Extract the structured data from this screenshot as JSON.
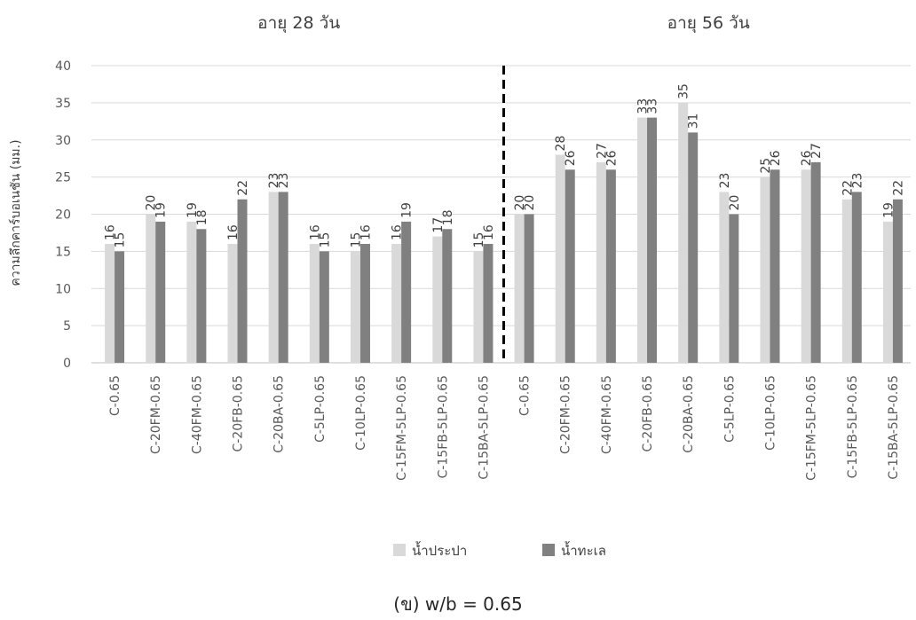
{
  "chart_data": {
    "type": "bar",
    "title": "",
    "caption": "(ข) w/b = 0.65",
    "ylabel": "ความลึกคาร์บอเนชัน (มม.)",
    "xlabel": "",
    "ylim": [
      0,
      40
    ],
    "yticks": [
      0,
      5,
      10,
      15,
      20,
      25,
      30,
      35,
      40
    ],
    "grid": true,
    "legend_position": "bottom",
    "groups": [
      {
        "label": "อายุ 28 วัน",
        "start": 0,
        "count": 10
      },
      {
        "label": "อายุ 56 วัน",
        "start": 10,
        "count": 10
      }
    ],
    "categories": [
      "C-0.65",
      "C-20FM-0.65",
      "C-40FM-0.65",
      "C-20FB-0.65",
      "C-20BA-0.65",
      "C-5LP-0.65",
      "C-10LP-0.65",
      "C-15FM-5LP-0.65",
      "C-15FB-5LP-0.65",
      "C-15BA-5LP-0.65",
      "C-0.65",
      "C-20FM-0.65",
      "C-40FM-0.65",
      "C-20FB-0.65",
      "C-20BA-0.65",
      "C-5LP-0.65",
      "C-10LP-0.65",
      "C-15FM-5LP-0.65",
      "C-15FB-5LP-0.65",
      "C-15BA-5LP-0.65"
    ],
    "series": [
      {
        "name": "น้ำประปา",
        "color": "#d9d9d9",
        "values": [
          16,
          20,
          19,
          16,
          23,
          16,
          15,
          16,
          17,
          15,
          20,
          28,
          27,
          33,
          35,
          23,
          25,
          26,
          22,
          19
        ]
      },
      {
        "name": "น้ำทะเล",
        "color": "#808080",
        "values": [
          15,
          19,
          18,
          22,
          23,
          15,
          16,
          19,
          18,
          16,
          20,
          26,
          26,
          33,
          31,
          20,
          26,
          27,
          23,
          22
        ]
      }
    ],
    "divider_after_index": 9
  }
}
